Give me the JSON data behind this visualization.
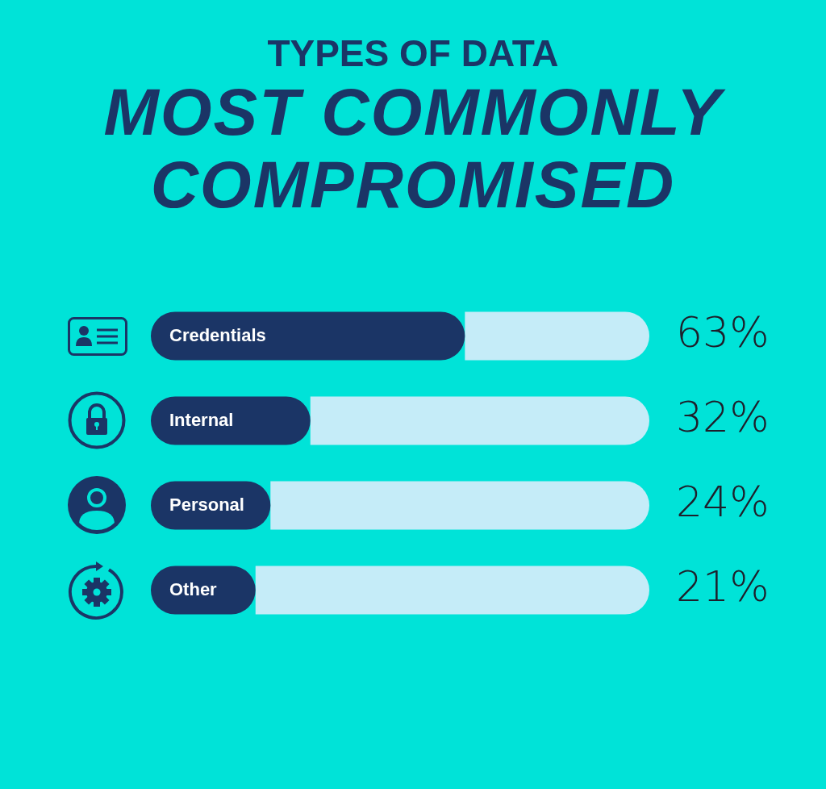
{
  "chart_data": {
    "type": "bar",
    "title": "TYPES OF DATA",
    "subtitle": "MOST COMMONLY COMPROMISED",
    "orientation": "horizontal",
    "stacked": true,
    "categories": [
      "Credentials",
      "Internal",
      "Personal",
      "Other"
    ],
    "series": [
      {
        "color": "#1b3566",
        "values": [
          63,
          32,
          24,
          21
        ],
        "value_labels": [
          "63%",
          "32%",
          "24%",
          "21%"
        ]
      },
      {
        "color": "#c5ecf8",
        "values": [
          37,
          68,
          76,
          79
        ]
      }
    ],
    "xlim": [
      0,
      100
    ],
    "tick_labels": "y"
  }
}
